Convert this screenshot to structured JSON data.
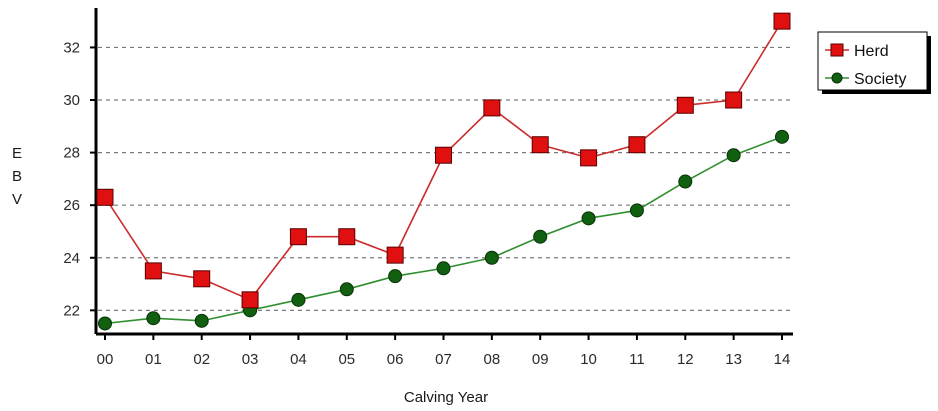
{
  "chart_data": {
    "type": "line",
    "xlabel": "Calving Year",
    "ylabel": "E B V",
    "categories": [
      "00",
      "01",
      "02",
      "03",
      "04",
      "05",
      "06",
      "07",
      "08",
      "09",
      "10",
      "11",
      "12",
      "13",
      "14"
    ],
    "yticks": [
      22,
      24,
      26,
      28,
      30,
      32
    ],
    "ylim": [
      21.1,
      33.5
    ],
    "grid": true,
    "legend_position": "top-right",
    "series": [
      {
        "name": "Herd",
        "marker": "square",
        "line_color": "#cc2a2a",
        "marker_fill": "#e01010",
        "values": [
          26.3,
          23.5,
          23.2,
          22.4,
          24.8,
          24.8,
          24.1,
          27.9,
          29.7,
          28.3,
          27.8,
          28.3,
          29.8,
          30.0,
          33.0
        ]
      },
      {
        "name": "Society",
        "marker": "circle",
        "line_color": "#2f8f2f",
        "marker_fill": "#106010",
        "values": [
          21.5,
          21.7,
          21.6,
          22.0,
          22.4,
          22.8,
          23.3,
          23.6,
          24.0,
          24.8,
          25.5,
          25.8,
          26.9,
          27.9,
          28.6
        ]
      }
    ]
  }
}
